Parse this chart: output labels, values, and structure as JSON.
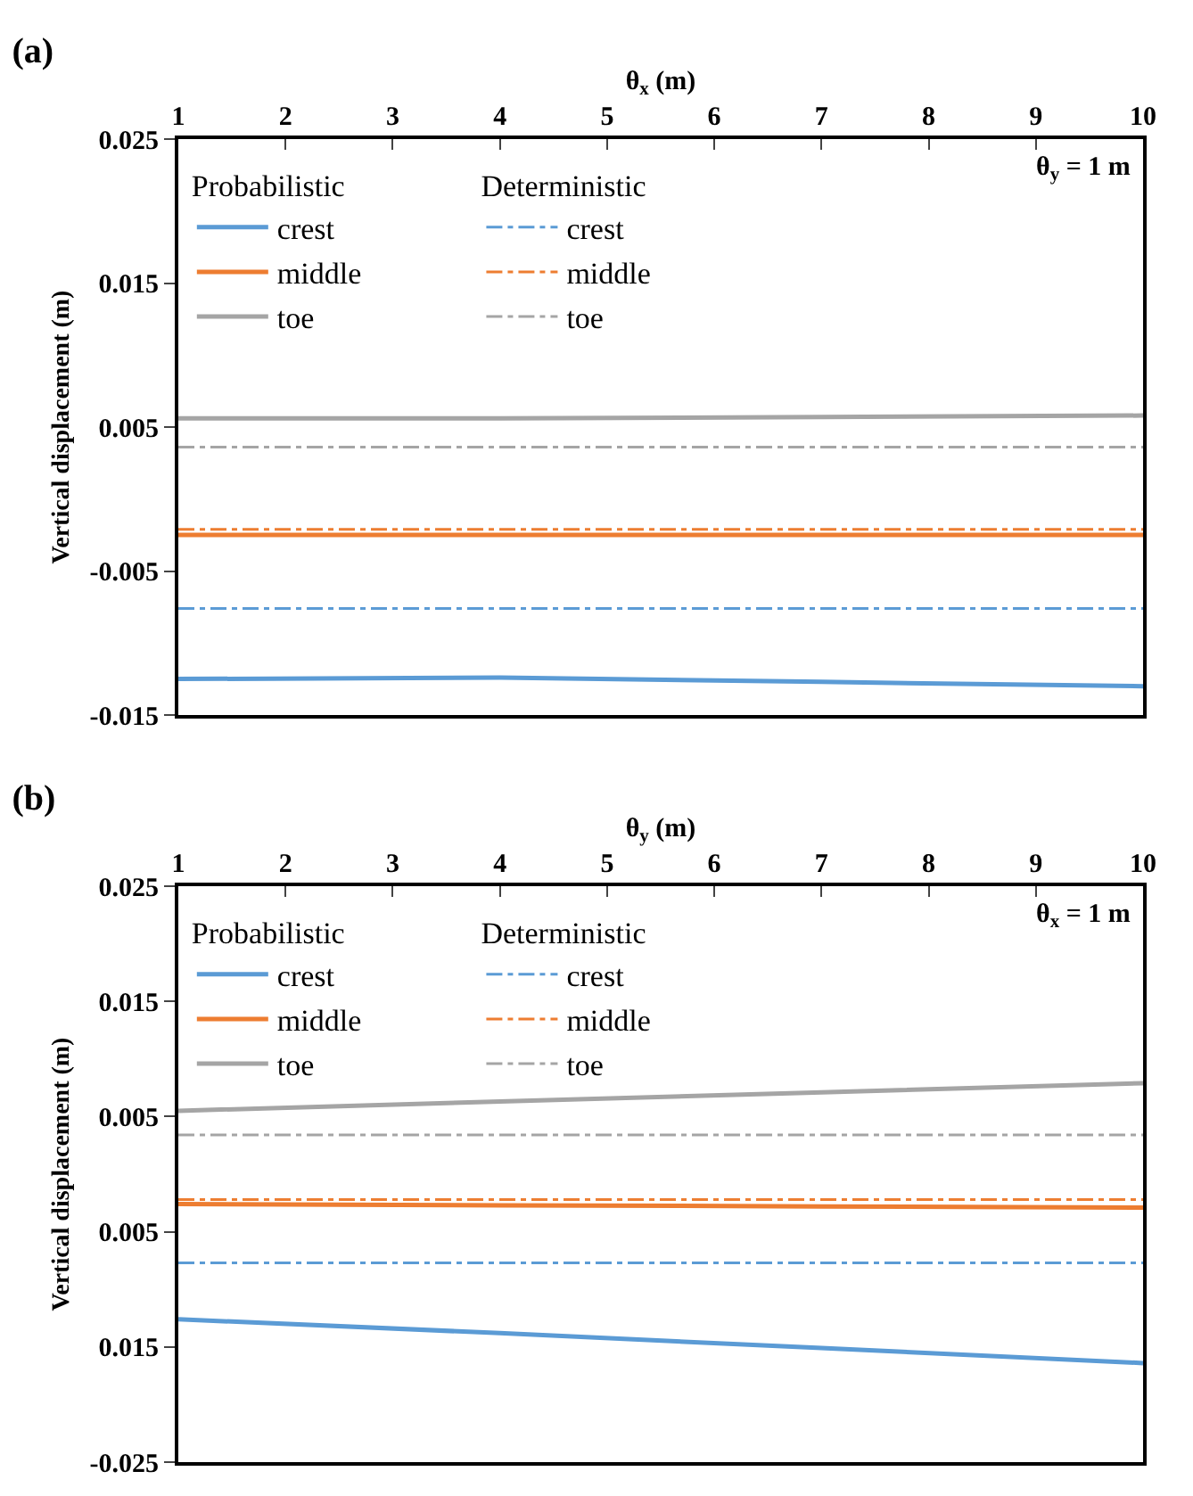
{
  "chart_data": [
    {
      "type": "line",
      "title": "(a)",
      "xlabel": "θ$_{x}$ (m)",
      "ylabel": "Vertical displacement (m)",
      "x": [
        1,
        4,
        7,
        10
      ],
      "xlim": [
        1,
        10
      ],
      "xticks": [
        1,
        2,
        3,
        4,
        5,
        6,
        7,
        8,
        9,
        10
      ],
      "ylim": [
        -0.015,
        0.025
      ],
      "yticks": [
        0.025,
        0.015,
        0.005,
        -0.005,
        -0.015
      ],
      "legend": "top left",
      "annotations": [
        "θ$_{y}$ = 1 m",
        "Probabilistic",
        "Deterministic"
      ],
      "series": [
        {
          "name": "crest",
          "color": "#5b9bd5",
          "line_style": "solid",
          "values": [
            -0.0125,
            -0.0124,
            -0.0127,
            -0.013
          ]
        },
        {
          "name": "middle",
          "color": "#ed7d31",
          "line_style": "solid",
          "values": [
            -0.0025,
            -0.0025,
            -0.0025,
            -0.0025
          ]
        },
        {
          "name": "toe",
          "color": "#a5a5a5",
          "line_style": "solid",
          "values": [
            0.0056,
            0.0056,
            0.0057,
            0.0058
          ]
        },
        {
          "name": "crest",
          "color": "#5b9bd5",
          "line_style": "dashed",
          "values": [
            -0.0076,
            -0.0076,
            -0.0076,
            -0.0076
          ]
        },
        {
          "name": "middle",
          "color": "#ed7d31",
          "line_style": "dashed",
          "values": [
            -0.0021,
            -0.0021,
            -0.0021,
            -0.0021
          ]
        },
        {
          "name": "toe",
          "color": "#a5a5a5",
          "line_style": "dashed",
          "values": [
            0.0036,
            0.0036,
            0.0036,
            0.0036
          ]
        }
      ]
    },
    {
      "type": "line",
      "title": "(b)",
      "xlabel": "θ$_{y}$ (m)",
      "ylabel": "Vertical displacement (m)",
      "x": [
        1,
        4,
        7,
        10
      ],
      "xlim": [
        1,
        10
      ],
      "xticks": [
        1,
        2,
        3,
        4,
        5,
        6,
        7,
        8,
        9,
        10
      ],
      "ylim": [
        -0.025,
        0.025
      ],
      "yticks": [
        0.025,
        0.015,
        0.005,
        {
          "value": -0.005,
          "label": "0.005"
        },
        {
          "value": -0.015,
          "label": "0.015"
        },
        -0.025
      ],
      "legend": "top left",
      "annotations": [
        "θ$_{x}$ = 1 m",
        "Probabilistic",
        "Deterministic"
      ],
      "series": [
        {
          "name": "crest",
          "color": "#5b9bd5",
          "line_style": "solid",
          "values": [
            -0.0126,
            -0.0138,
            -0.0151,
            -0.0164
          ]
        },
        {
          "name": "middle",
          "color": "#ed7d31",
          "line_style": "solid",
          "values": [
            -0.0026,
            -0.0027,
            -0.0028,
            -0.0029
          ]
        },
        {
          "name": "toe",
          "color": "#a5a5a5",
          "line_style": "solid",
          "values": [
            0.0055,
            0.0063,
            0.0071,
            0.0079
          ]
        },
        {
          "name": "crest",
          "color": "#5b9bd5",
          "line_style": "dashed",
          "values": [
            -0.0077,
            -0.0077,
            -0.0077,
            -0.0077
          ]
        },
        {
          "name": "middle",
          "color": "#ed7d31",
          "line_style": "dashed",
          "values": [
            -0.0022,
            -0.0022,
            -0.0022,
            -0.0022
          ]
        },
        {
          "name": "toe",
          "color": "#a5a5a5",
          "line_style": "dashed",
          "values": [
            0.0034,
            0.0034,
            0.0034,
            0.0034
          ]
        }
      ]
    }
  ]
}
